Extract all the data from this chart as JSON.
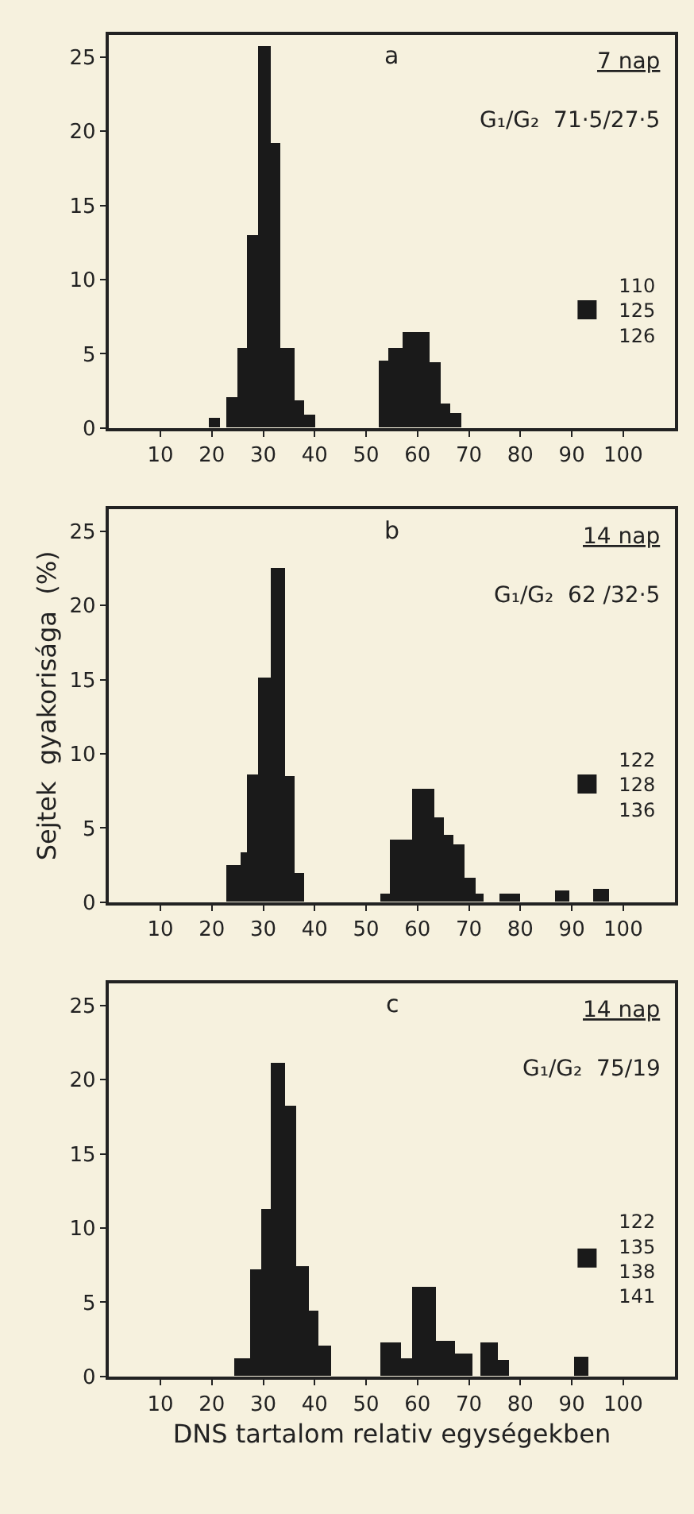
{
  "chart_data": [
    {
      "type": "histogram",
      "title": "a",
      "annotations": [
        "7 nap",
        "G₁/G₂  71·5/27·5"
      ],
      "bins": [
        19.5,
        21.5,
        23,
        25,
        27,
        29,
        31.5,
        33.5,
        36,
        38,
        40,
        52.5,
        54.5,
        57,
        62.5,
        64.5,
        66.5,
        68.5
      ],
      "series": [
        {
          "name": "110\n125\n126",
          "color": "#1a1a1a",
          "values": [
            0.7,
            null,
            2.1,
            5.4,
            13,
            25.7,
            19.2,
            5.4,
            1.9,
            0.9,
            null,
            4.6,
            5.4,
            6.5,
            4.4,
            1.7,
            1.0
          ]
        }
      ],
      "xlim": [
        0,
        110
      ],
      "xticks": [
        10,
        20,
        30,
        40,
        50,
        60,
        70,
        80,
        90,
        100
      ],
      "ylim": [
        0,
        26.5
      ],
      "yticks": [
        0,
        5,
        10,
        15,
        20,
        25
      ],
      "legend": "right"
    },
    {
      "type": "histogram",
      "title": "b",
      "annotations": [
        "14 nap",
        "G₁/G₂  62 /32·5"
      ],
      "ylabel": "Sejtek  gyakorisága  (%)",
      "bins": [
        22.7,
        25.5,
        27,
        29,
        31.6,
        34.4,
        36.2,
        38,
        52.7,
        54.7,
        59.1,
        63.2,
        65.2,
        66.9,
        69.2,
        71.2,
        73,
        75.9,
        79.9,
        86.8,
        89.6,
        94.2,
        97.3
      ],
      "series": [
        {
          "name": "122\n128\n136",
          "color": "#1a1a1a",
          "values": [
            2.5,
            3.4,
            8.6,
            15.2,
            22.5,
            8.5,
            2.0,
            null,
            0.6,
            4.2,
            7.7,
            5.7,
            4.6,
            3.9,
            1.7,
            0.6,
            null,
            0.6,
            null,
            0.8,
            null,
            0.9
          ]
        }
      ],
      "xlim": [
        0,
        110
      ],
      "xticks": [
        10,
        20,
        30,
        40,
        50,
        60,
        70,
        80,
        90,
        100
      ],
      "ylim": [
        0,
        26.5
      ],
      "yticks": [
        0,
        5,
        10,
        15,
        20,
        25
      ],
      "legend": "right"
    },
    {
      "type": "histogram",
      "title": "c",
      "annotations": [
        "14 nap",
        "G₁/G₂  75/19"
      ],
      "xlabel": "DNS tartalom relativ egységekben",
      "bins": [
        24.3,
        27.5,
        29.7,
        31.5,
        34.3,
        36.5,
        38.8,
        40.9,
        43.1,
        52.9,
        56.9,
        59.1,
        63.7,
        67.2,
        70.7,
        72.4,
        75.7,
        77.7,
        90.6,
        93.3
      ],
      "series": [
        {
          "name": "122\n135\n138\n141",
          "color": "#1a1a1a",
          "values": [
            1.2,
            7.2,
            11.3,
            21.1,
            18.3,
            7.4,
            4.4,
            2.1,
            null,
            2.3,
            1.2,
            6.1,
            2.4,
            1.5,
            null,
            2.3,
            1.1,
            null,
            1.3
          ]
        }
      ],
      "xlim": [
        0,
        110
      ],
      "xticks": [
        10,
        20,
        30,
        40,
        50,
        60,
        70,
        80,
        90,
        100
      ],
      "ylim": [
        0,
        26.5
      ],
      "yticks": [
        0,
        5,
        10,
        15,
        20,
        25
      ],
      "legend": "right"
    }
  ]
}
